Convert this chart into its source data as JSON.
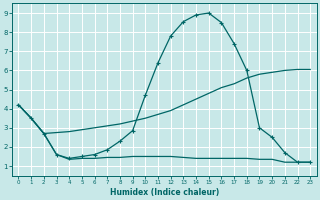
{
  "xlabel": "Humidex (Indice chaleur)",
  "bg_color": "#c8e8e8",
  "grid_color": "#ffffff",
  "line_color": "#006666",
  "xlim": [
    -0.5,
    23.5
  ],
  "ylim": [
    0.5,
    9.5
  ],
  "xticks": [
    0,
    1,
    2,
    3,
    4,
    5,
    6,
    7,
    8,
    9,
    10,
    11,
    12,
    13,
    14,
    15,
    16,
    17,
    18,
    19,
    20,
    21,
    22,
    23
  ],
  "yticks": [
    1,
    2,
    3,
    4,
    5,
    6,
    7,
    8,
    9
  ],
  "line1_x": [
    0,
    1,
    2,
    3,
    4,
    5,
    6,
    7,
    8,
    9,
    10,
    11,
    12,
    13,
    14,
    15,
    16,
    17,
    18,
    19,
    20,
    21,
    22,
    23
  ],
  "line1_y": [
    4.2,
    3.5,
    2.7,
    1.6,
    1.4,
    1.5,
    1.6,
    1.85,
    2.3,
    2.85,
    4.7,
    6.4,
    7.8,
    8.55,
    8.9,
    9.0,
    8.5,
    7.4,
    6.0,
    3.0,
    2.5,
    1.7,
    1.2,
    1.2
  ],
  "line2_x": [
    0,
    1,
    2,
    3,
    4,
    5,
    6,
    7,
    8,
    9,
    10,
    11,
    12,
    13,
    14,
    15,
    16,
    17,
    18,
    19,
    20,
    21,
    22,
    23
  ],
  "line2_y": [
    4.2,
    3.5,
    2.7,
    2.75,
    2.8,
    2.9,
    3.0,
    3.1,
    3.2,
    3.35,
    3.5,
    3.7,
    3.9,
    4.2,
    4.5,
    4.8,
    5.1,
    5.3,
    5.6,
    5.8,
    5.9,
    6.0,
    6.05,
    6.05
  ],
  "line3_x": [
    0,
    1,
    2,
    3,
    4,
    5,
    6,
    7,
    8,
    9,
    10,
    11,
    12,
    13,
    14,
    15,
    16,
    17,
    18,
    19,
    20,
    21,
    22,
    23
  ],
  "line3_y": [
    4.2,
    3.5,
    2.7,
    1.6,
    1.35,
    1.4,
    1.4,
    1.45,
    1.45,
    1.5,
    1.5,
    1.5,
    1.5,
    1.45,
    1.4,
    1.4,
    1.4,
    1.4,
    1.4,
    1.35,
    1.35,
    1.2,
    1.2,
    1.2
  ]
}
